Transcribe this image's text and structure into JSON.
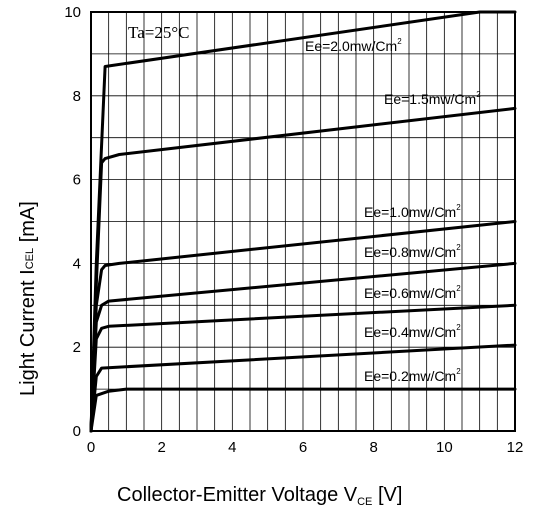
{
  "chart_data": {
    "type": "line",
    "xlabel": {
      "main": "Collector-Emitter Voltage V",
      "sub": "CE",
      "unit": " [V]"
    },
    "ylabel": {
      "main": "Light Current I",
      "sub": "CEL",
      "unit": " [mA]"
    },
    "xlim": [
      0,
      12
    ],
    "ylim": [
      0,
      10
    ],
    "xticks": [
      "0",
      "2",
      "4",
      "6",
      "8",
      "10",
      "12"
    ],
    "yticks": [
      "0",
      "2",
      "4",
      "6",
      "8",
      "10"
    ],
    "grid": true,
    "condition": "Ta=25°C",
    "series": [
      {
        "name": "Ee=2.0mw/Cm",
        "sup": "2",
        "x": [
          0,
          0.15,
          0.4,
          11.0,
          12.0
        ],
        "y": [
          0,
          4.0,
          8.7,
          10.0,
          10.0
        ]
      },
      {
        "name": "Ee=1.5mw/Cm",
        "sup": "2",
        "x": [
          0,
          0.15,
          0.3,
          0.4,
          0.8,
          12.0
        ],
        "y": [
          0,
          3.5,
          6.4,
          6.5,
          6.6,
          7.7
        ]
      },
      {
        "name": "Ee=1.0mw/Cm",
        "sup": "2",
        "x": [
          0,
          0.15,
          0.3,
          0.4,
          0.8,
          12.0
        ],
        "y": [
          0,
          3.0,
          3.85,
          3.95,
          4.0,
          5.0
        ]
      },
      {
        "name": "Ee=0.8mw/Cm",
        "sup": "2",
        "x": [
          0,
          0.15,
          0.3,
          0.5,
          12.0
        ],
        "y": [
          0,
          2.6,
          3.0,
          3.1,
          4.0
        ]
      },
      {
        "name": "Ee=0.6mw/Cm",
        "sup": "2",
        "x": [
          0,
          0.15,
          0.3,
          0.5,
          12.0
        ],
        "y": [
          0,
          2.2,
          2.45,
          2.5,
          3.0
        ]
      },
      {
        "name": "Ee=0.4mw/Cm",
        "sup": "2",
        "x": [
          0,
          0.15,
          0.3,
          12.0
        ],
        "y": [
          0,
          1.3,
          1.5,
          2.05
        ]
      },
      {
        "name": "Ee=0.2mw/Cm",
        "sup": "2",
        "x": [
          0,
          0.15,
          0.5,
          1.0,
          12.0
        ],
        "y": [
          0,
          0.85,
          0.95,
          1.0,
          1.0
        ]
      }
    ]
  }
}
